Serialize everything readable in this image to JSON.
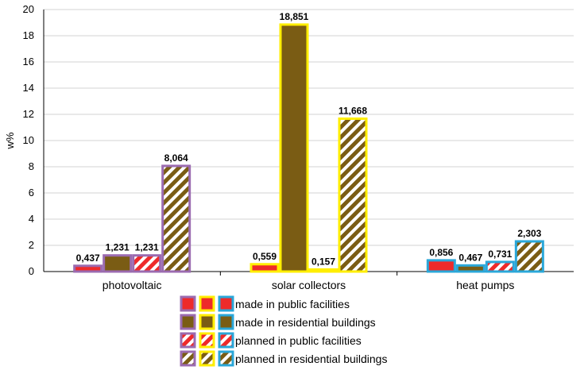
{
  "chart_data": {
    "type": "bar",
    "title": "",
    "xlabel": "",
    "ylabel": "w%",
    "ylim": [
      0,
      20
    ],
    "yticks": [
      0,
      2,
      4,
      6,
      8,
      10,
      12,
      14,
      16,
      18,
      20
    ],
    "grid": true,
    "legend_position": "bottom",
    "categories": [
      "photovoltaic",
      "solar collectors",
      "heat pumps"
    ],
    "category_colors": [
      "#9b6bb0",
      "#ffee00",
      "#2aa7d9"
    ],
    "fill_colors": {
      "public": "#ee2a2a",
      "residential": "#7a5c14"
    },
    "series": [
      {
        "name": "made in public facilities",
        "pattern": "solid",
        "fill": "public",
        "values": [
          0.437,
          0.559,
          0.856
        ],
        "labels": [
          "0,437",
          "0,559",
          "0,856"
        ]
      },
      {
        "name": "made in residential buildings",
        "pattern": "solid",
        "fill": "residential",
        "values": [
          1.231,
          18.851,
          0.467
        ],
        "labels": [
          "1,231",
          "18,851",
          "0,467"
        ]
      },
      {
        "name": "planned in public facilities",
        "pattern": "striped",
        "fill": "public",
        "values": [
          1.231,
          0.157,
          0.731
        ],
        "labels": [
          "1,231",
          "0,157",
          "0,731"
        ]
      },
      {
        "name": "planned in residential buildings",
        "pattern": "striped",
        "fill": "residential",
        "values": [
          8.064,
          11.668,
          2.303
        ],
        "labels": [
          "8,064",
          "11,668",
          "2,303"
        ]
      }
    ]
  }
}
